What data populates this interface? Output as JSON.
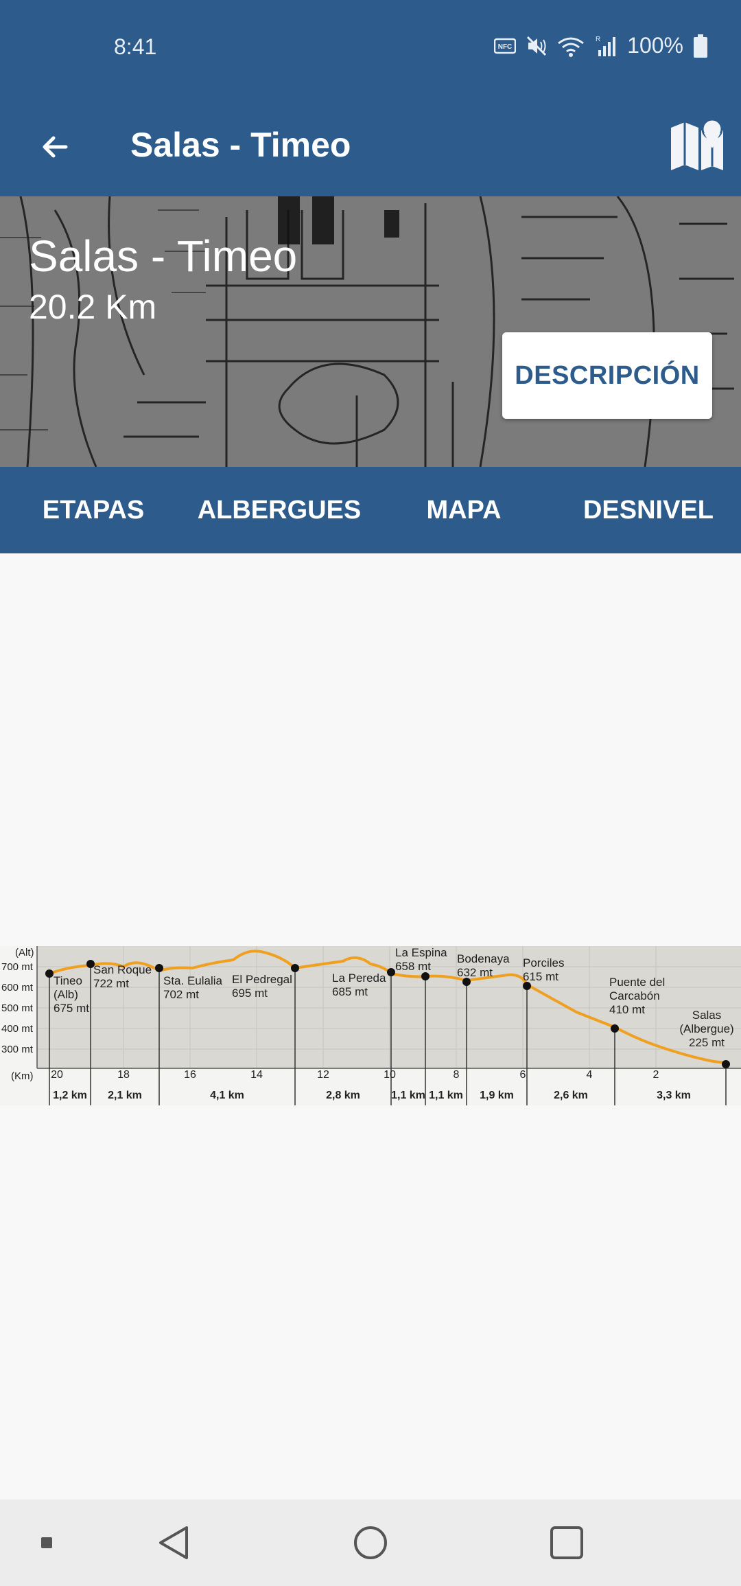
{
  "status_bar": {
    "time": "8:41",
    "battery_text": "100%",
    "icons": [
      "nfc-icon",
      "vibrate-mute-icon",
      "wifi-icon",
      "signal-icon",
      "battery-icon"
    ]
  },
  "app_bar": {
    "title": "Salas - Timeo",
    "back_icon": "arrow-back-icon",
    "map_icon": "map-pin-icon"
  },
  "hero": {
    "title": "Salas - Timeo",
    "distance": "20.2 Km",
    "description_button": "DESCRIPCIÓN"
  },
  "tabs": [
    "ETAPAS",
    "ALBERGUES",
    "MAPA",
    "DESNIVEL"
  ],
  "elevation_profile": {
    "y_axis_label": "(Alt)",
    "y_ticks": [
      "700 mt",
      "600 mt",
      "500 mt",
      "400 mt",
      "300 mt"
    ],
    "x_axis_label": "(Km)",
    "x_ticks": [
      "20",
      "18",
      "16",
      "14",
      "12",
      "10",
      "8",
      "6",
      "4",
      "2"
    ],
    "waypoints": [
      {
        "lines": [
          "Tineo",
          "(Alb)",
          "675 mt"
        ]
      },
      {
        "lines": [
          "San Roque",
          "722 mt"
        ]
      },
      {
        "lines": [
          "Sta. Eulalia",
          "702 mt"
        ]
      },
      {
        "lines": [
          "El Pedregal",
          "695 mt"
        ]
      },
      {
        "lines": [
          "La Pereda",
          "685 mt"
        ]
      },
      {
        "lines": [
          "La Espina",
          "658 mt"
        ]
      },
      {
        "lines": [
          "Bodenaya",
          "632 mt"
        ]
      },
      {
        "lines": [
          "Porciles",
          "615 mt"
        ]
      },
      {
        "lines": [
          "Puente del",
          "Carcabón",
          "410 mt"
        ]
      },
      {
        "lines": [
          "Salas",
          "(Albergue)",
          "225 mt"
        ]
      }
    ],
    "segments": [
      "1,2 km",
      "2,1 km",
      "4,1 km",
      "2,8 km",
      "1,1 km",
      "1,1 km",
      "1,9 km",
      "2,6 km",
      "3,3 km"
    ],
    "colors": {
      "line": "#f0a020",
      "fill": "#d9d8d3"
    }
  },
  "nav_bar": {
    "icons": [
      "recents-dot-icon",
      "back-triangle-icon",
      "home-circle-icon",
      "overview-square-icon"
    ]
  },
  "theme": {
    "primary": "#2c5b8c"
  }
}
